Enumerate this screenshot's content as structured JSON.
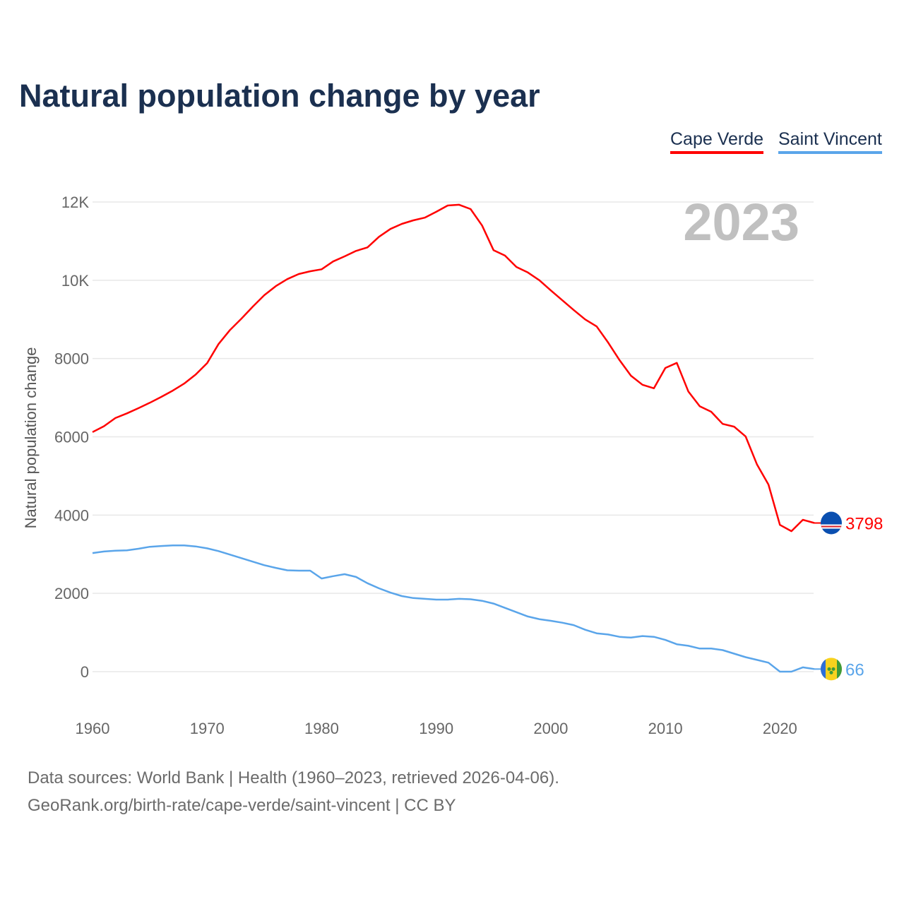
{
  "title": "Natural population change by year",
  "year_label": "2023",
  "footer": {
    "line1": "Data sources: World Bank | Health (1960–2023, retrieved 2026-04-06).",
    "line2": "GeoRank.org/birth-rate/cape-verde/saint-vincent | CC BY"
  },
  "chart_data": {
    "type": "line",
    "title": "Natural population change by year",
    "xlabel": "",
    "ylabel": "Natural population change",
    "xlim": [
      1960,
      2023
    ],
    "ylim": [
      -1000,
      12000
    ],
    "grid": true,
    "legend_position": "top-right",
    "x_ticks": [
      1960,
      1970,
      1980,
      1990,
      2000,
      2010,
      2020
    ],
    "x_tick_labels": [
      "1960",
      "1970",
      "1980",
      "1990",
      "2000",
      "2010",
      "2020"
    ],
    "y_ticks": [
      0,
      2000,
      4000,
      6000,
      8000,
      10000,
      12000
    ],
    "y_tick_labels": [
      "0",
      "2000",
      "4000",
      "6000",
      "8000",
      "10K",
      "12K"
    ],
    "x": [
      1960,
      1961,
      1962,
      1963,
      1964,
      1965,
      1966,
      1967,
      1968,
      1969,
      1970,
      1971,
      1972,
      1973,
      1974,
      1975,
      1976,
      1977,
      1978,
      1979,
      1980,
      1981,
      1982,
      1983,
      1984,
      1985,
      1986,
      1987,
      1988,
      1989,
      1990,
      1991,
      1992,
      1993,
      1994,
      1995,
      1996,
      1997,
      1998,
      1999,
      2000,
      2001,
      2002,
      2003,
      2004,
      2005,
      2006,
      2007,
      2008,
      2009,
      2010,
      2011,
      2012,
      2013,
      2014,
      2015,
      2016,
      2017,
      2018,
      2019,
      2020,
      2021,
      2022,
      2023
    ],
    "series": [
      {
        "name": "Cape Verde",
        "color": "#ff0000",
        "end_label": "3798",
        "flag": "cape-verde-flag",
        "values": [
          6120,
          6270,
          6480,
          6600,
          6730,
          6870,
          7020,
          7180,
          7360,
          7590,
          7880,
          8370,
          8730,
          9020,
          9330,
          9620,
          9850,
          10030,
          10160,
          10230,
          10280,
          10480,
          10610,
          10750,
          10840,
          11110,
          11310,
          11440,
          11530,
          11600,
          11750,
          11910,
          11930,
          11820,
          11400,
          10770,
          10630,
          10340,
          10200,
          10000,
          9740,
          9490,
          9240,
          9000,
          8820,
          8410,
          7960,
          7560,
          7330,
          7240,
          7760,
          7890,
          7160,
          6780,
          6640,
          6330,
          6260,
          6010,
          5290,
          4780,
          3750,
          3590,
          3880,
          3798
        ]
      },
      {
        "name": "Saint Vincent",
        "color": "#5aa5ea",
        "end_label": "66",
        "flag": "saint-vincent-flag",
        "values": [
          3030,
          3070,
          3090,
          3100,
          3140,
          3190,
          3210,
          3225,
          3225,
          3200,
          3150,
          3080,
          2990,
          2900,
          2810,
          2720,
          2650,
          2590,
          2580,
          2580,
          2380,
          2440,
          2490,
          2420,
          2260,
          2130,
          2020,
          1930,
          1880,
          1860,
          1840,
          1840,
          1860,
          1850,
          1810,
          1740,
          1630,
          1520,
          1410,
          1340,
          1300,
          1250,
          1190,
          1070,
          980,
          950,
          890,
          870,
          910,
          890,
          810,
          700,
          660,
          590,
          590,
          550,
          460,
          370,
          300,
          230,
          0,
          0,
          110,
          66
        ]
      }
    ]
  }
}
